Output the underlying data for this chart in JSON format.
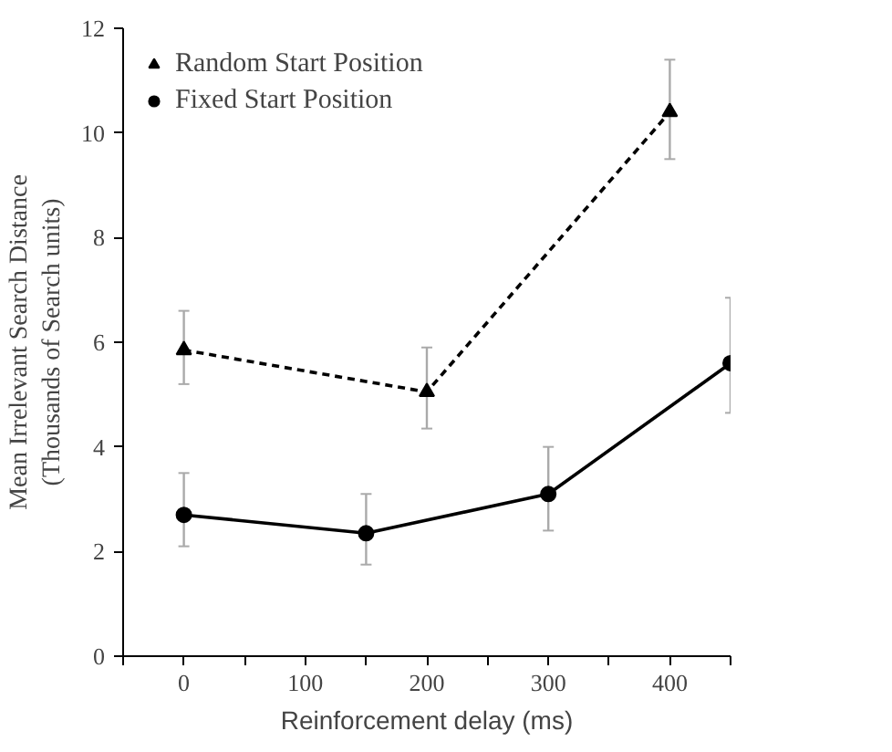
{
  "chart_data": {
    "type": "line",
    "xlabel": "Reinforcement delay (ms)",
    "ylabel": "Mean Irrelevant Search Distance\n(Thousands of Search units)",
    "xlim": [
      -50,
      450
    ],
    "xticks": [
      {
        "value": -50,
        "label": null
      },
      0,
      {
        "value": 50,
        "label": null
      },
      100,
      {
        "value": 150,
        "label": null
      },
      200,
      {
        "value": 250,
        "label": null
      },
      300,
      {
        "value": 350,
        "label": null
      },
      400,
      {
        "value": 450,
        "label": null
      }
    ],
    "ylim": [
      0,
      12
    ],
    "yticks": [
      0,
      2,
      4,
      6,
      8,
      10,
      12
    ],
    "grid": false,
    "legend": "top left",
    "series": [
      {
        "name": "Random Start Position",
        "color": "#000000",
        "marker": "triangle",
        "line_style": "dashed",
        "x": [
          0,
          200,
          400
        ],
        "values": [
          5.85,
          5.05,
          10.4
        ],
        "errors": [
          [
            5.2,
            6.6
          ],
          [
            4.35,
            5.9
          ],
          [
            9.5,
            11.4
          ]
        ]
      },
      {
        "name": "Fixed Start Position",
        "color": "#000000",
        "marker": "circle",
        "line_style": "solid",
        "x": [
          0,
          150,
          300,
          450
        ],
        "values": [
          2.7,
          2.35,
          3.1,
          5.6
        ],
        "errors": [
          [
            2.1,
            3.5
          ],
          [
            1.75,
            3.1
          ],
          [
            2.4,
            4.0
          ],
          [
            4.65,
            6.85
          ]
        ]
      }
    ]
  }
}
